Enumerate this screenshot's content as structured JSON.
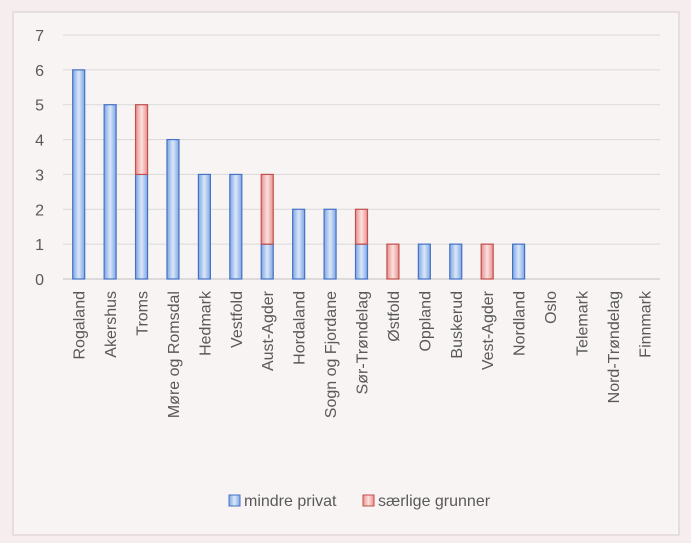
{
  "chart_data": {
    "type": "bar",
    "stacked": true,
    "title": "",
    "xlabel": "",
    "ylabel": "",
    "ylim": [
      0,
      7
    ],
    "yticks": [
      0,
      1,
      2,
      3,
      4,
      5,
      6,
      7
    ],
    "grid": true,
    "legend_position": "bottom",
    "categories": [
      "Rogaland",
      "Akershus",
      "Troms",
      "Møre og Romsdal",
      "Hedmark",
      "Vestfold",
      "Aust-Agder",
      "Hordaland",
      "Sogn og Fjordane",
      "Sør-Trøndelag",
      "Østfold",
      "Oppland",
      "Buskerud",
      "Vest-Agder",
      "Nordland",
      "Oslo",
      "Telemark",
      "Nord-Trøndelag",
      "Finnmark"
    ],
    "series": [
      {
        "name": "mindre privat",
        "color": "#a9c4ec",
        "stroke": "#4472c4",
        "values": [
          6,
          5,
          3,
          4,
          3,
          3,
          1,
          2,
          2,
          1,
          0,
          1,
          1,
          0,
          1,
          0,
          0,
          0,
          0
        ]
      },
      {
        "name": "særlige grunner",
        "color": "#f2b6b4",
        "stroke": "#c0504d",
        "values": [
          0,
          0,
          2,
          0,
          0,
          0,
          2,
          0,
          0,
          1,
          1,
          0,
          0,
          1,
          0,
          0,
          0,
          0,
          0
        ]
      }
    ]
  }
}
